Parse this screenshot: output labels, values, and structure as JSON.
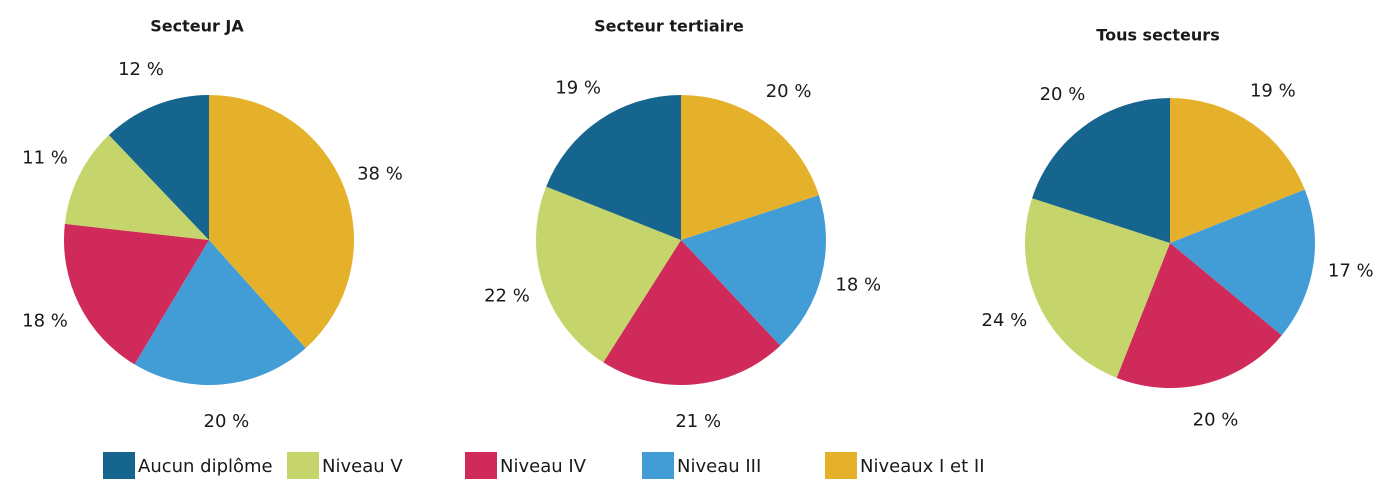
{
  "legend": {
    "labels": [
      "Niveaux I et II",
      "Niveau III",
      "Niveau IV",
      "Niveau V",
      "Aucun diplôme"
    ],
    "colors": [
      "#e5b12b",
      "#429dd6",
      "#cf2a5a",
      "#c5d46b",
      "#16658f"
    ]
  },
  "chart_data": [
    {
      "type": "pie",
      "title": "Secteur JA",
      "values": [
        38,
        20,
        18,
        11,
        12
      ],
      "value_labels": [
        "38 %",
        "20 %",
        "18 %",
        "11 %",
        "12 %"
      ]
    },
    {
      "type": "pie",
      "title": "Secteur tertiaire",
      "values": [
        20,
        18,
        21,
        22,
        19
      ],
      "value_labels": [
        "20 %",
        "18 %",
        "21 %",
        "22 %",
        "19 %"
      ]
    },
    {
      "type": "pie",
      "title": "Tous secteurs",
      "values": [
        19,
        17,
        20,
        24,
        20
      ],
      "value_labels": [
        "19 %",
        "17 %",
        "20 %",
        "24 %",
        "20 %"
      ]
    }
  ]
}
